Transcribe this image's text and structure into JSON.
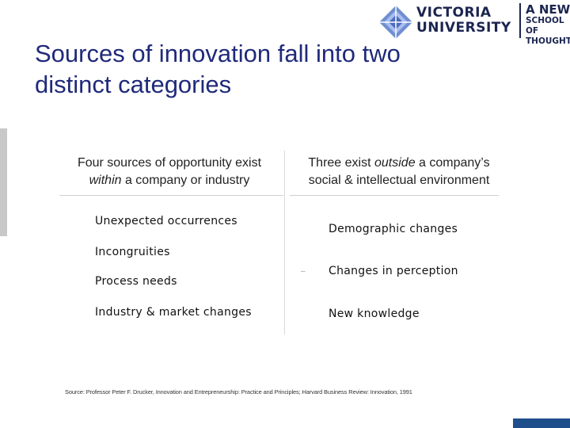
{
  "logo": {
    "name_line1": "VICTORIA",
    "name_line2": "UNIVERSITY",
    "tagline_line1": "A NEW",
    "tagline_line2": "SCHOOL OF",
    "tagline_line3": "THOUGHT",
    "brand_color": "#1b2550"
  },
  "title": "Sources of innovation fall into two distinct categories",
  "left_column": {
    "header_line1": "Four sources of opportunity exist",
    "header_em": "within",
    "header_rest": " a company or industry",
    "items": [
      "Unexpected occurrences",
      "Incongruities",
      "Process needs",
      "Industry & market changes"
    ]
  },
  "right_column": {
    "header_pre": "Three exist ",
    "header_em": "outside",
    "header_post": " a company’s",
    "header_line2": "social & intellectual environment",
    "items": [
      "Demographic changes",
      "Changes in perception",
      "New knowledge"
    ]
  },
  "source": "Source: Professor Peter F. Drucker, Innovation and Entrepreneurship: Practice and Principles; Harvard Business Review: Innovation, 1991",
  "colors": {
    "title": "#1f2a7a",
    "footer_block": "#1f4e8c"
  }
}
